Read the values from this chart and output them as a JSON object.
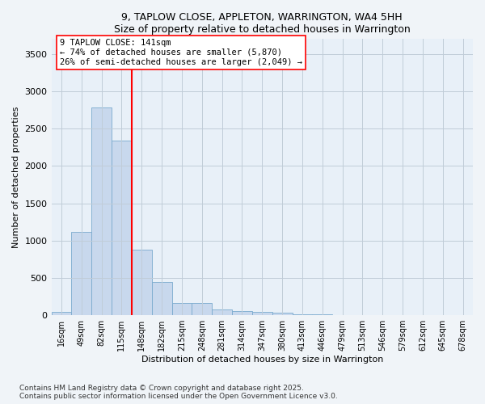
{
  "title1": "9, TAPLOW CLOSE, APPLETON, WARRINGTON, WA4 5HH",
  "title2": "Size of property relative to detached houses in Warrington",
  "xlabel": "Distribution of detached houses by size in Warrington",
  "ylabel": "Number of detached properties",
  "categories": [
    "16sqm",
    "49sqm",
    "82sqm",
    "115sqm",
    "148sqm",
    "182sqm",
    "215sqm",
    "248sqm",
    "281sqm",
    "314sqm",
    "347sqm",
    "380sqm",
    "413sqm",
    "446sqm",
    "479sqm",
    "513sqm",
    "546sqm",
    "579sqm",
    "612sqm",
    "645sqm",
    "678sqm"
  ],
  "values": [
    50,
    1120,
    2780,
    2340,
    880,
    450,
    170,
    170,
    80,
    55,
    45,
    30,
    15,
    15,
    5,
    3,
    2,
    1,
    0,
    0,
    0
  ],
  "bar_color": "#c8d8ed",
  "bar_edge_color": "#7aaace",
  "vline_color": "red",
  "annotation_text": "9 TAPLOW CLOSE: 141sqm\n← 74% of detached houses are smaller (5,870)\n26% of semi-detached houses are larger (2,049) →",
  "annotation_box_color": "white",
  "annotation_box_edge": "red",
  "ylim": [
    0,
    3700
  ],
  "yticks": [
    0,
    500,
    1000,
    1500,
    2000,
    2500,
    3000,
    3500
  ],
  "footer1": "Contains HM Land Registry data © Crown copyright and database right 2025.",
  "footer2": "Contains public sector information licensed under the Open Government Licence v3.0.",
  "bg_color": "#f0f4f8",
  "plot_bg_color": "#e8f0f8",
  "grid_color": "#c0ccd8"
}
